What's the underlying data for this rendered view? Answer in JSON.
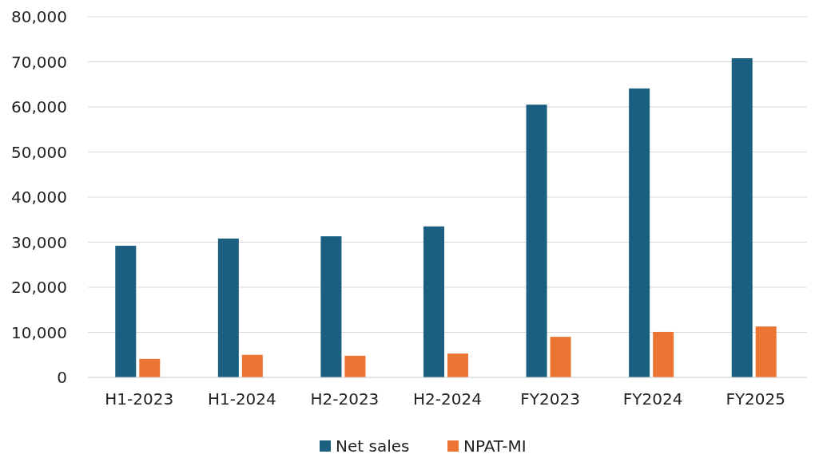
{
  "chart_data": {
    "type": "bar",
    "categories": [
      "H1-2023",
      "H1-2024",
      "H2-2023",
      "H2-2024",
      "FY2023",
      "FY2024",
      "FY2025"
    ],
    "series": [
      {
        "name": "Net sales",
        "color": "#1a5f80",
        "values": [
          29200,
          30800,
          31300,
          33500,
          60500,
          64100,
          70800
        ]
      },
      {
        "name": "NPAT-MI",
        "color": "#ed7534",
        "values": [
          4100,
          5000,
          4800,
          5300,
          9000,
          10100,
          11300
        ]
      }
    ],
    "ylim": [
      0,
      80000
    ],
    "yticks": [
      {
        "value": 0,
        "label": "0"
      },
      {
        "value": 10000,
        "label": "10,000"
      },
      {
        "value": 20000,
        "label": "20,000"
      },
      {
        "value": 30000,
        "label": "30,000"
      },
      {
        "value": 40000,
        "label": "40,000"
      },
      {
        "value": 50000,
        "label": "50,000"
      },
      {
        "value": 60000,
        "label": "60,000"
      },
      {
        "value": 70000,
        "label": "70,000"
      },
      {
        "value": 80000,
        "label": "80,000"
      }
    ],
    "grid": "y",
    "legend": "bottom"
  }
}
